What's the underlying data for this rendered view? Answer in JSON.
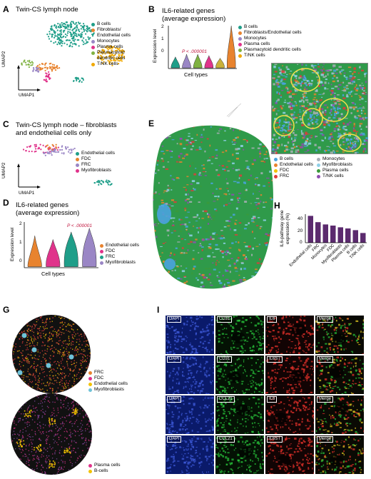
{
  "panels": {
    "A": {
      "letter": "A",
      "title": "Twin-CS lymph node",
      "xlabel": "UMAP1",
      "ylabel": "UMAP2",
      "legend": [
        {
          "label": "B cells",
          "color": "#1f9e89"
        },
        {
          "label": "Fibroblasts/",
          "color": "#e8832e"
        },
        {
          "label": "Endothelial cells",
          "color": ""
        },
        {
          "label": "Monocytes",
          "color": "#9a86c5"
        },
        {
          "label": "Plasma cells",
          "color": "#e0338b"
        },
        {
          "label": "Plasmacytoid",
          "color": "#7fb241"
        },
        {
          "label": "dendritic cells",
          "color": ""
        },
        {
          "label": "T/NK cells",
          "color": "#f0a800"
        }
      ]
    },
    "B": {
      "letter": "B",
      "title_line1": "IL6-related genes",
      "title_line2": "(average expression)",
      "ylabel": "Expression level",
      "xlabel": "Cell types",
      "pvalue": "P < .000001",
      "yticks": [
        "2",
        "1",
        "0"
      ],
      "legend": [
        {
          "label": "B cells",
          "color": "#1f9e89"
        },
        {
          "label": "Fibroblasts/Endothelial cells",
          "color": "#e8832e"
        },
        {
          "label": "Monocytes",
          "color": "#9a86c5"
        },
        {
          "label": "Plasma cells",
          "color": "#e0338b"
        },
        {
          "label": "Plasmacytoid dendritic cells",
          "color": "#7fb241"
        },
        {
          "label": "T/NK cells",
          "color": "#f0a800"
        }
      ]
    },
    "C": {
      "letter": "C",
      "title_line1": "Twin-CS lymph node – fibroblasts",
      "title_line2": "and endothelial cells only",
      "xlabel": "UMAP1",
      "ylabel": "UMAP2",
      "legend": [
        {
          "label": "Endothelial cells",
          "color": "#1f9e89"
        },
        {
          "label": "FDC",
          "color": "#e8832e"
        },
        {
          "label": "FRC",
          "color": "#9a86c5"
        },
        {
          "label": "Myofibroblasts",
          "color": "#e0338b"
        }
      ]
    },
    "D": {
      "letter": "D",
      "title_line1": "IL6-related genes",
      "title_line2": "(average expression)",
      "ylabel": "Expression level",
      "xlabel": "Cell types",
      "pvalue": "P < .000001",
      "yticks": [
        "2",
        "1",
        "0"
      ],
      "legend": [
        {
          "label": "Endothelial cells",
          "color": "#e8832e"
        },
        {
          "label": "FDC",
          "color": "#e0338b"
        },
        {
          "label": "FRC",
          "color": "#1f9e89"
        },
        {
          "label": "Myofibroblasts",
          "color": "#9a86c5"
        }
      ]
    },
    "E": {
      "letter": "E"
    },
    "F": {
      "letter": "F",
      "legend": [
        {
          "label": "B cells",
          "color": "#4aa3df"
        },
        {
          "label": "Monocytes",
          "color": "#aab0b7"
        },
        {
          "label": "Endothelial cells",
          "color": "#e8832e"
        },
        {
          "label": "Myofibroblasts",
          "color": "#8fd0e8"
        },
        {
          "label": "FDC",
          "color": "#f2c200"
        },
        {
          "label": "Plasma cells",
          "color": "#3a9a3a"
        },
        {
          "label": "FRC",
          "color": "#e03b3b"
        },
        {
          "label": "T/NK cells",
          "color": "#8e4fb0"
        }
      ]
    },
    "G": {
      "letter": "G",
      "legend_top": [
        {
          "label": "FRC",
          "color": "#e8832e"
        },
        {
          "label": "FDC",
          "color": "#e0338b"
        },
        {
          "label": "Endothelial cells",
          "color": "#f2c200"
        },
        {
          "label": "Myofibroblasts",
          "color": "#6fc3d8"
        }
      ],
      "legend_bottom": [
        {
          "label": "Plasma cells",
          "color": "#e0338b"
        },
        {
          "label": "B-cells",
          "color": "#f2c200"
        }
      ]
    },
    "H": {
      "letter": "H",
      "ylabel_line1": "IL6-pathway gene",
      "ylabel_line2": "expression (%)",
      "yticks": [
        "0",
        "20",
        "40"
      ]
    },
    "I": {
      "letter": "I",
      "rows": [
        [
          "DAPI",
          "CD31",
          "IL6",
          "Merge"
        ],
        [
          "DAPI",
          "CD31",
          "IL6ST",
          "Merge"
        ],
        [
          "DAPI",
          "CCL21",
          "IL6",
          "Merge"
        ],
        [
          "DAPI",
          "CCL21",
          "IL6ST",
          "Merge"
        ]
      ]
    }
  },
  "chart_data": [
    {
      "panel": "B",
      "type": "violin",
      "categories": [
        "B cells",
        "Fibroblasts/Endothelial cells",
        "Monocytes",
        "Plasma cells",
        "Plasmacytoid dendritic cells",
        "T/NK cells"
      ],
      "ylim": [
        -0.3,
        3
      ],
      "medians": [
        0.05,
        0.05,
        0.1,
        0.1,
        0.1,
        0.9
      ],
      "max": [
        0.6,
        0.8,
        0.8,
        0.7,
        0.5,
        3.0
      ],
      "colors": [
        "#1f9e89",
        "#9a86c5",
        "#7fb241",
        "#e0338b",
        "#c9b03a",
        "#e8832e"
      ]
    },
    {
      "panel": "D",
      "type": "violin",
      "categories": [
        "Endothelial cells",
        "FDC",
        "FRC",
        "Myofibroblasts"
      ],
      "ylim": [
        -0.2,
        2.3
      ],
      "medians": [
        0.15,
        0.4,
        0.9,
        1.0
      ],
      "max": [
        1.5,
        1.3,
        1.7,
        1.9
      ],
      "colors": [
        "#e8832e",
        "#e0338b",
        "#1f9e89",
        "#9a86c5"
      ]
    },
    {
      "panel": "H",
      "type": "bar",
      "categories": [
        "Endothelial cells",
        "FRC",
        "Monocytes",
        "FDC",
        "Myofibroblasts",
        "Plasma cells",
        "B cells",
        "T/NK cells"
      ],
      "values": [
        47,
        36,
        32,
        30,
        27,
        25,
        22,
        17
      ],
      "ylim": [
        0,
        50
      ],
      "color": "#5b2a6e"
    }
  ]
}
